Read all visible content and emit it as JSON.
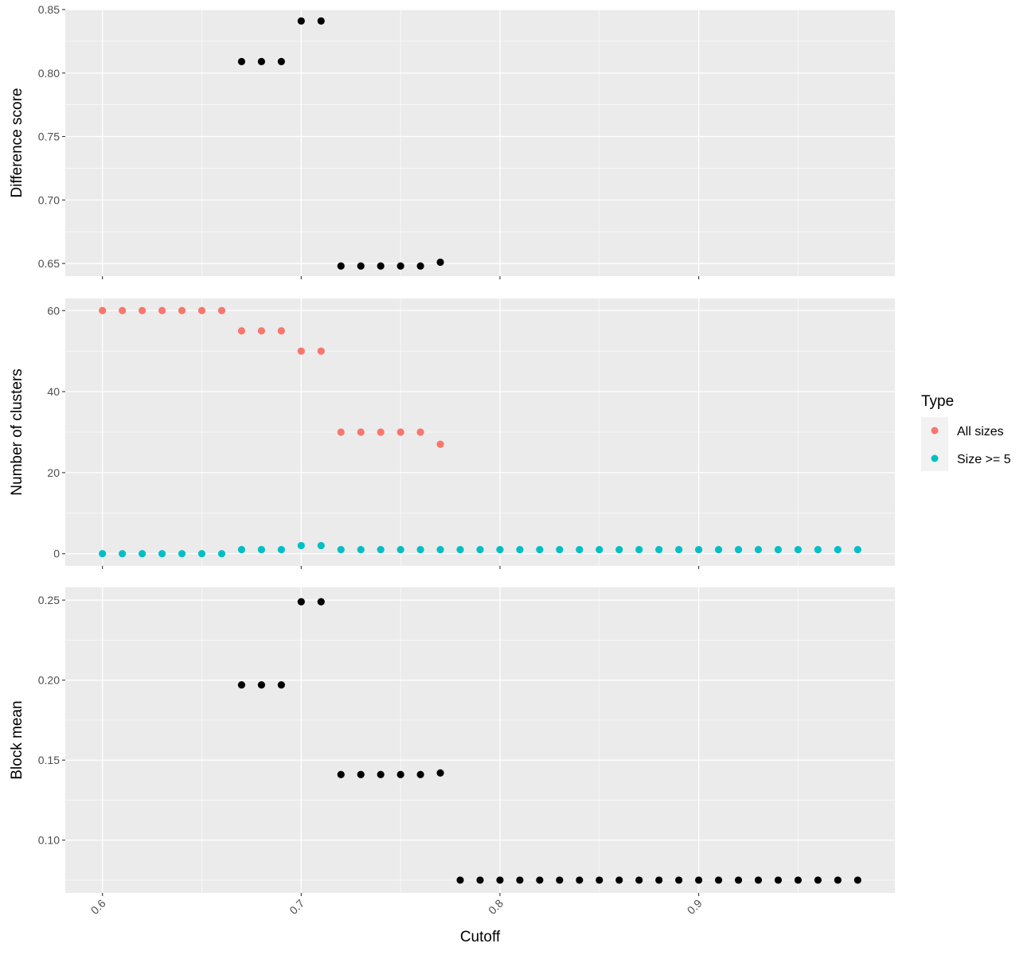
{
  "chart_data": [
    {
      "type": "scatter",
      "panel": "top",
      "ylabel": "Difference score",
      "ylim": [
        0.64,
        0.85
      ],
      "yticks": [
        "0.65",
        "0.70",
        "0.75",
        "0.80",
        "0.85"
      ],
      "ytick_values": [
        0.65,
        0.7,
        0.75,
        0.8,
        0.85
      ],
      "grid": true,
      "series": [
        {
          "color": "#000000",
          "x": [
            0.67,
            0.68,
            0.69,
            0.7,
            0.71,
            0.72,
            0.73,
            0.74,
            0.75,
            0.76,
            0.77
          ],
          "y": [
            0.809,
            0.809,
            0.809,
            0.841,
            0.841,
            0.648,
            0.648,
            0.648,
            0.648,
            0.648,
            0.651
          ]
        }
      ]
    },
    {
      "type": "scatter",
      "panel": "middle",
      "ylabel": "Number of clusters",
      "ylim": [
        -3,
        63
      ],
      "yticks": [
        "0",
        "20",
        "40",
        "60"
      ],
      "ytick_values": [
        0,
        20,
        40,
        60
      ],
      "grid": true,
      "series": [
        {
          "name": "All sizes",
          "color": "#F8766D",
          "x": [
            0.6,
            0.61,
            0.62,
            0.63,
            0.64,
            0.65,
            0.66,
            0.67,
            0.68,
            0.69,
            0.7,
            0.71,
            0.72,
            0.73,
            0.74,
            0.75,
            0.76,
            0.77
          ],
          "y": [
            60,
            60,
            60,
            60,
            60,
            60,
            60,
            55,
            55,
            55,
            50,
            50,
            30,
            30,
            30,
            30,
            30,
            27
          ]
        },
        {
          "name": "Size >= 5",
          "color": "#00BFC4",
          "x": [
            0.6,
            0.61,
            0.62,
            0.63,
            0.64,
            0.65,
            0.66,
            0.67,
            0.68,
            0.69,
            0.7,
            0.71,
            0.72,
            0.73,
            0.74,
            0.75,
            0.76,
            0.77,
            0.78,
            0.79,
            0.8,
            0.81,
            0.82,
            0.83,
            0.84,
            0.85,
            0.86,
            0.87,
            0.88,
            0.89,
            0.9,
            0.91,
            0.92,
            0.93,
            0.94,
            0.95,
            0.96,
            0.97,
            0.98
          ],
          "y": [
            0,
            0,
            0,
            0,
            0,
            0,
            0,
            1,
            1,
            1,
            2,
            2,
            1,
            1,
            1,
            1,
            1,
            1,
            1,
            1,
            1,
            1,
            1,
            1,
            1,
            1,
            1,
            1,
            1,
            1,
            1,
            1,
            1,
            1,
            1,
            1,
            1,
            1,
            1
          ]
        }
      ]
    },
    {
      "type": "scatter",
      "panel": "bottom",
      "ylabel": "Block mean",
      "xlabel": "Cutoff",
      "ylim": [
        0.067,
        0.258
      ],
      "yticks": [
        "0.10",
        "0.15",
        "0.20",
        "0.25"
      ],
      "ytick_values": [
        0.1,
        0.15,
        0.2,
        0.25
      ],
      "grid": true,
      "series": [
        {
          "color": "#000000",
          "x": [
            0.67,
            0.68,
            0.69,
            0.7,
            0.71,
            0.72,
            0.73,
            0.74,
            0.75,
            0.76,
            0.77,
            0.78,
            0.79,
            0.8,
            0.81,
            0.82,
            0.83,
            0.84,
            0.85,
            0.86,
            0.87,
            0.88,
            0.89,
            0.9,
            0.91,
            0.92,
            0.93,
            0.94,
            0.95,
            0.96,
            0.97,
            0.98
          ],
          "y": [
            0.197,
            0.197,
            0.197,
            0.249,
            0.249,
            0.141,
            0.141,
            0.141,
            0.141,
            0.141,
            0.142,
            0.075,
            0.075,
            0.075,
            0.075,
            0.075,
            0.075,
            0.075,
            0.075,
            0.075,
            0.075,
            0.075,
            0.075,
            0.075,
            0.075,
            0.075,
            0.075,
            0.075,
            0.075,
            0.075,
            0.075,
            0.075
          ]
        }
      ]
    }
  ],
  "x_axis": {
    "xlim": [
      0.5813,
      0.9987
    ],
    "ticks": [
      "0.6",
      "0.7",
      "0.8",
      "0.9"
    ],
    "tick_values": [
      0.6,
      0.7,
      0.8,
      0.9
    ],
    "label": "Cutoff",
    "tick_rotation_deg": -45
  },
  "legend": {
    "title": "Type",
    "position": "right",
    "items": [
      {
        "label": "All sizes",
        "color": "#F8766D"
      },
      {
        "label": "Size >= 5",
        "color": "#00BFC4"
      }
    ]
  },
  "style": {
    "panel_background": "#EBEBEB",
    "grid_color": "#FFFFFF"
  }
}
